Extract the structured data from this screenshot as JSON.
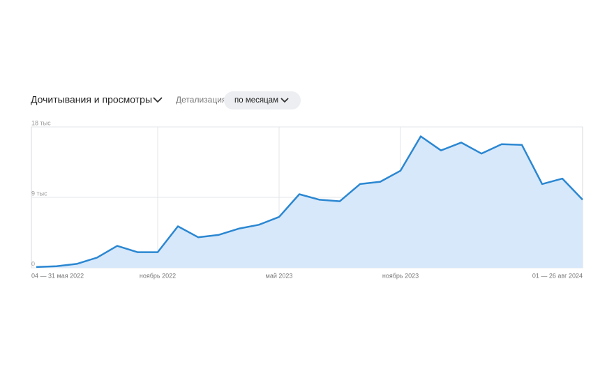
{
  "chart_data": {
    "type": "line",
    "title": "Дочитывания и просмотры",
    "detail_label": "Детализация",
    "period": "по месяцам",
    "categories": [
      "04 — 31 мая 2022",
      null,
      null,
      null,
      null,
      null,
      "ноябрь 2022",
      null,
      null,
      null,
      null,
      null,
      "май 2023",
      null,
      null,
      null,
      null,
      null,
      "ноябрь 2023",
      null,
      null,
      null,
      null,
      null,
      null,
      null,
      null,
      "01 — 26 авг 2024"
    ],
    "series": [
      {
        "color": "#2b87d1",
        "fill": "#d7e8fb",
        "values": [
          100,
          200,
          500,
          1300,
          2800,
          2000,
          2000,
          5300,
          3900,
          4200,
          5000,
          5500,
          6500,
          9400,
          8700,
          8500,
          10700,
          11000,
          12400,
          16800,
          15000,
          16000,
          14600,
          15800,
          15700,
          10700,
          11400,
          8700
        ]
      }
    ],
    "ylim": [
      0,
      18000
    ],
    "yticks": [
      {
        "value": 0,
        "label": "0"
      },
      {
        "value": 9000,
        "label": "9 тыс"
      },
      {
        "value": 18000,
        "label": "18 тыс"
      }
    ],
    "grid": true
  }
}
